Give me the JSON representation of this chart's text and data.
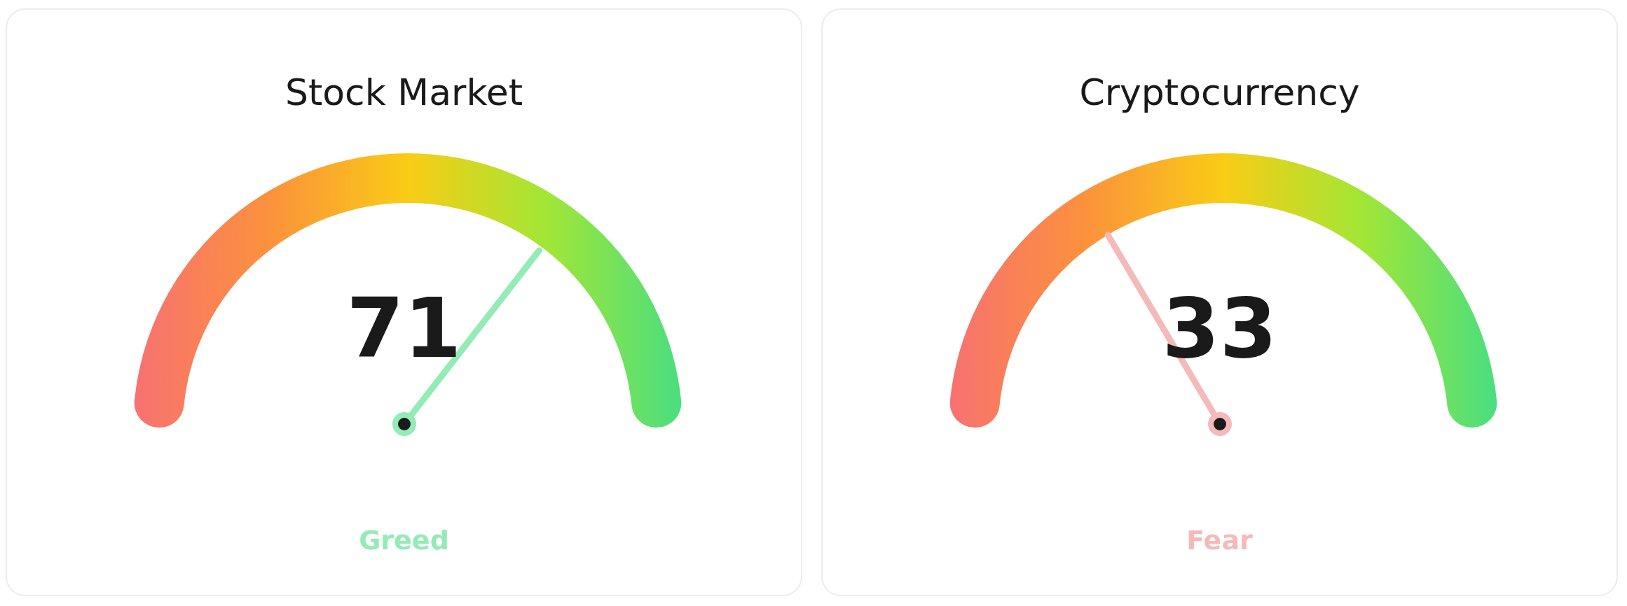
{
  "chart_data": [
    {
      "type": "other",
      "title": "Stock Market",
      "values": [
        71
      ],
      "data_labels": true,
      "annotations": [
        "Greed"
      ]
    },
    {
      "type": "other",
      "title": "Cryptocurrency",
      "values": [
        33
      ],
      "data_labels": true,
      "annotations": [
        "Fear"
      ]
    }
  ]
}
